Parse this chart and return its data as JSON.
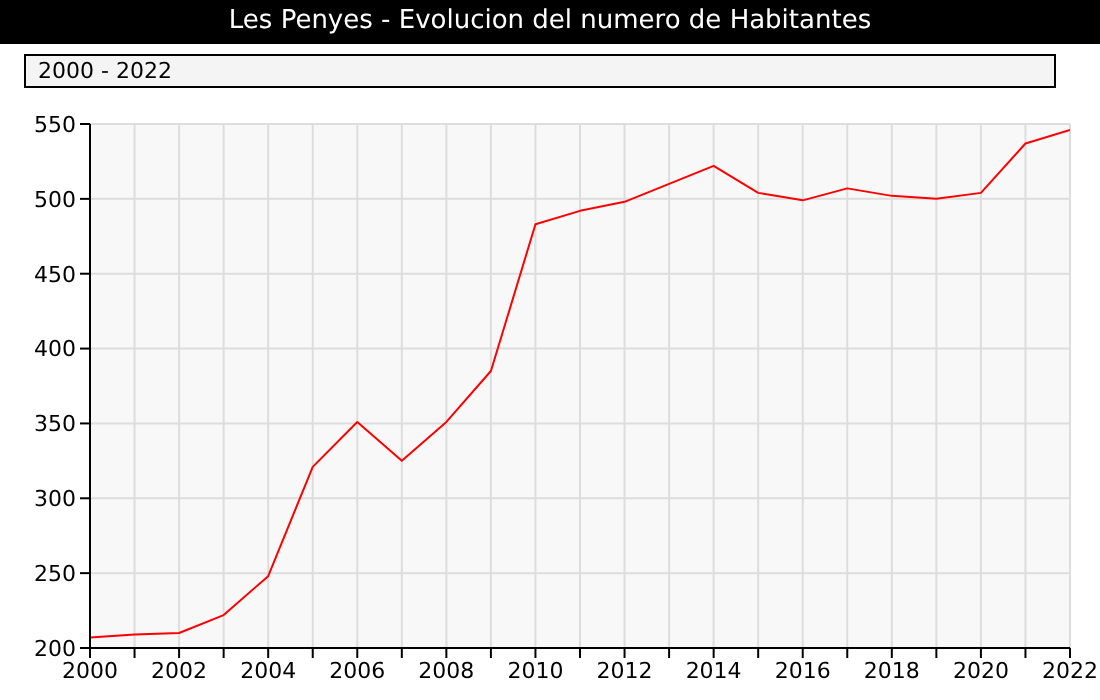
{
  "chart_data": {
    "type": "line",
    "title": "Les Penyes - Evolucion del numero de Habitantes",
    "subtitle": "2000 - 2022",
    "x": [
      2000,
      2001,
      2002,
      2003,
      2004,
      2005,
      2006,
      2007,
      2008,
      2009,
      2010,
      2011,
      2012,
      2013,
      2014,
      2015,
      2016,
      2017,
      2018,
      2019,
      2020,
      2021,
      2022
    ],
    "series": [
      {
        "color": "#ff0000",
        "values": [
          207,
          209,
          210,
          222,
          248,
          321,
          351,
          325,
          351,
          385,
          483,
          492,
          498,
          510,
          522,
          504,
          499,
          507,
          502,
          500,
          504,
          537,
          546
        ]
      }
    ],
    "xlim": [
      2000,
      2022
    ],
    "xticks": [
      2000,
      {
        "value": 2001,
        "label": null
      },
      2002,
      {
        "value": 2003,
        "label": null
      },
      2004,
      {
        "value": 2005,
        "label": null
      },
      2006,
      {
        "value": 2007,
        "label": null
      },
      2008,
      {
        "value": 2009,
        "label": null
      },
      2010,
      {
        "value": 2011,
        "label": null
      },
      2012,
      {
        "value": 2013,
        "label": null
      },
      2014,
      {
        "value": 2015,
        "label": null
      },
      2016,
      {
        "value": 2017,
        "label": null
      },
      2018,
      {
        "value": 2019,
        "label": null
      },
      2020,
      {
        "value": 2021,
        "label": null
      },
      2022
    ],
    "ylim": [
      200,
      550
    ],
    "yticks": [
      200,
      250,
      300,
      350,
      400,
      450,
      500,
      550
    ],
    "grid": true,
    "marker": "none",
    "line_style": "solid"
  }
}
